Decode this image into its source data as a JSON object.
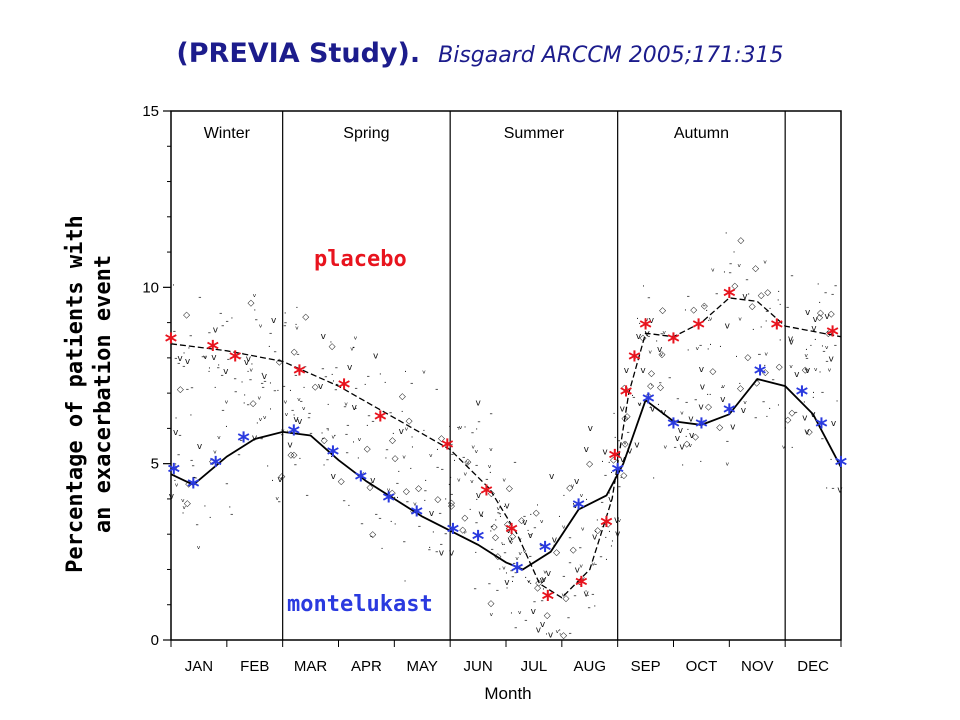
{
  "title": {
    "main": "(PREVIA Study).",
    "reference": "Bisgaard ARCCM 2005;171:315"
  },
  "colors": {
    "title": "#1c1c8c",
    "placebo": "#e8141e",
    "montelukast": "#2a3adf",
    "axis": "#000000",
    "scatter": "#111111"
  },
  "chart_data": {
    "type": "line",
    "ylabel": [
      "Percentage of patients with",
      "an exacerbation event"
    ],
    "xlabel": "Month",
    "ylim": [
      0,
      15
    ],
    "yticks": [
      0,
      5,
      10,
      15
    ],
    "xlim": [
      0,
      12
    ],
    "month_labels": [
      "JAN",
      "FEB",
      "MAR",
      "APR",
      "MAY",
      "JUN",
      "JUL",
      "AUG",
      "SEP",
      "OCT",
      "NOV",
      "DEC"
    ],
    "seasons": [
      {
        "label": "Winter",
        "start": 0,
        "end": 2
      },
      {
        "label": "Spring",
        "start": 2,
        "end": 5
      },
      {
        "label": "Summer",
        "start": 5,
        "end": 8
      },
      {
        "label": "Autumn",
        "start": 8,
        "end": 11
      },
      {
        "label": "",
        "start": 11,
        "end": 12
      }
    ],
    "series": [
      {
        "name": "placebo",
        "marker": "*",
        "points": [
          {
            "x": 0.0,
            "y": 8.5
          },
          {
            "x": 0.75,
            "y": 8.3
          },
          {
            "x": 1.15,
            "y": 8.0
          },
          {
            "x": 2.3,
            "y": 7.6
          },
          {
            "x": 3.1,
            "y": 7.2
          },
          {
            "x": 3.75,
            "y": 6.3
          },
          {
            "x": 4.95,
            "y": 5.5
          },
          {
            "x": 5.65,
            "y": 4.2
          },
          {
            "x": 6.1,
            "y": 3.1
          },
          {
            "x": 6.75,
            "y": 1.2
          },
          {
            "x": 7.35,
            "y": 1.6
          },
          {
            "x": 7.8,
            "y": 3.3
          },
          {
            "x": 7.95,
            "y": 5.2
          },
          {
            "x": 8.15,
            "y": 7.0
          },
          {
            "x": 8.3,
            "y": 8.0
          },
          {
            "x": 8.5,
            "y": 8.9
          },
          {
            "x": 9.0,
            "y": 8.5
          },
          {
            "x": 9.45,
            "y": 8.9
          },
          {
            "x": 10.0,
            "y": 9.8
          },
          {
            "x": 10.85,
            "y": 8.9
          },
          {
            "x": 11.85,
            "y": 8.7
          }
        ],
        "trend": [
          {
            "x": 0.0,
            "y": 8.4
          },
          {
            "x": 1.0,
            "y": 8.2
          },
          {
            "x": 2.0,
            "y": 7.9
          },
          {
            "x": 3.0,
            "y": 7.2
          },
          {
            "x": 4.0,
            "y": 6.3
          },
          {
            "x": 5.0,
            "y": 5.4
          },
          {
            "x": 5.7,
            "y": 4.3
          },
          {
            "x": 6.2,
            "y": 3.0
          },
          {
            "x": 6.6,
            "y": 1.6
          },
          {
            "x": 7.0,
            "y": 1.2
          },
          {
            "x": 7.5,
            "y": 2.0
          },
          {
            "x": 7.9,
            "y": 4.0
          },
          {
            "x": 8.2,
            "y": 7.0
          },
          {
            "x": 8.5,
            "y": 8.7
          },
          {
            "x": 9.0,
            "y": 8.6
          },
          {
            "x": 9.5,
            "y": 9.0
          },
          {
            "x": 10.0,
            "y": 9.7
          },
          {
            "x": 10.5,
            "y": 9.6
          },
          {
            "x": 11.0,
            "y": 8.9
          },
          {
            "x": 12.0,
            "y": 8.6
          }
        ]
      },
      {
        "name": "montelukast",
        "marker": "*",
        "points": [
          {
            "x": 0.05,
            "y": 4.8
          },
          {
            "x": 0.4,
            "y": 4.4
          },
          {
            "x": 0.8,
            "y": 5.0
          },
          {
            "x": 1.3,
            "y": 5.7
          },
          {
            "x": 2.2,
            "y": 5.9
          },
          {
            "x": 2.9,
            "y": 5.3
          },
          {
            "x": 3.4,
            "y": 4.6
          },
          {
            "x": 3.9,
            "y": 4.0
          },
          {
            "x": 4.4,
            "y": 3.6
          },
          {
            "x": 5.05,
            "y": 3.1
          },
          {
            "x": 5.5,
            "y": 2.9
          },
          {
            "x": 6.2,
            "y": 2.0
          },
          {
            "x": 6.7,
            "y": 2.6
          },
          {
            "x": 7.3,
            "y": 3.8
          },
          {
            "x": 8.0,
            "y": 4.8
          },
          {
            "x": 8.55,
            "y": 6.8
          },
          {
            "x": 9.0,
            "y": 6.1
          },
          {
            "x": 9.5,
            "y": 6.1
          },
          {
            "x": 10.0,
            "y": 6.5
          },
          {
            "x": 10.55,
            "y": 7.6
          },
          {
            "x": 11.3,
            "y": 7.0
          },
          {
            "x": 11.65,
            "y": 6.1
          },
          {
            "x": 12.0,
            "y": 5.0
          }
        ],
        "trend": [
          {
            "x": 0.0,
            "y": 4.7
          },
          {
            "x": 0.4,
            "y": 4.4
          },
          {
            "x": 1.0,
            "y": 5.2
          },
          {
            "x": 1.5,
            "y": 5.7
          },
          {
            "x": 2.0,
            "y": 5.9
          },
          {
            "x": 2.5,
            "y": 5.8
          },
          {
            "x": 3.0,
            "y": 5.1
          },
          {
            "x": 3.5,
            "y": 4.5
          },
          {
            "x": 4.0,
            "y": 4.0
          },
          {
            "x": 4.5,
            "y": 3.5
          },
          {
            "x": 5.0,
            "y": 3.1
          },
          {
            "x": 5.5,
            "y": 2.7
          },
          {
            "x": 6.0,
            "y": 2.2
          },
          {
            "x": 6.3,
            "y": 2.0
          },
          {
            "x": 6.8,
            "y": 2.5
          },
          {
            "x": 7.3,
            "y": 3.7
          },
          {
            "x": 7.8,
            "y": 4.1
          },
          {
            "x": 8.1,
            "y": 5.0
          },
          {
            "x": 8.5,
            "y": 6.8
          },
          {
            "x": 9.0,
            "y": 6.2
          },
          {
            "x": 9.5,
            "y": 6.1
          },
          {
            "x": 10.0,
            "y": 6.4
          },
          {
            "x": 10.5,
            "y": 7.4
          },
          {
            "x": 11.0,
            "y": 7.2
          },
          {
            "x": 11.5,
            "y": 6.4
          },
          {
            "x": 12.0,
            "y": 4.9
          }
        ]
      }
    ],
    "grid": false
  }
}
